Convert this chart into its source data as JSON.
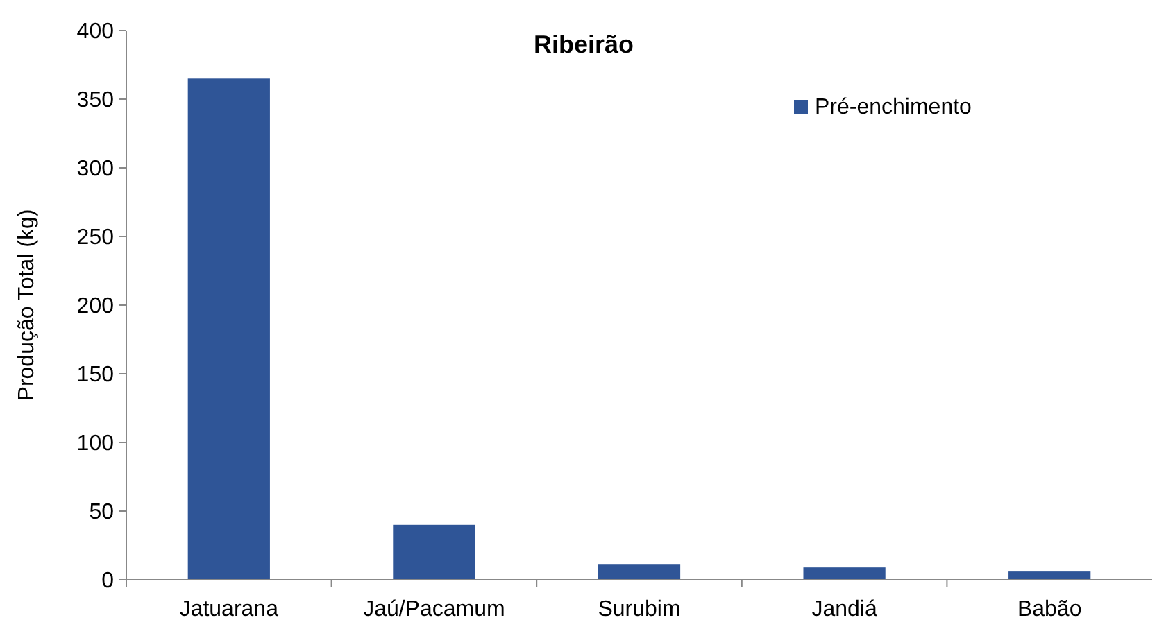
{
  "chart_data": {
    "type": "bar",
    "title": "Ribeirão",
    "ylabel": "Produção Total (kg)",
    "categories": [
      "Jatuarana",
      "Jaú/Pacamum",
      "Surubim",
      "Jandiá",
      "Babão"
    ],
    "series": [
      {
        "name": "Pré-enchimento",
        "color": "#2f5597",
        "values": [
          365,
          40,
          11,
          9,
          6
        ]
      }
    ],
    "ylim": [
      0,
      400
    ],
    "yticks": [
      0,
      50,
      100,
      150,
      200,
      250,
      300,
      350,
      400
    ],
    "grid": false,
    "legend": "top right"
  }
}
